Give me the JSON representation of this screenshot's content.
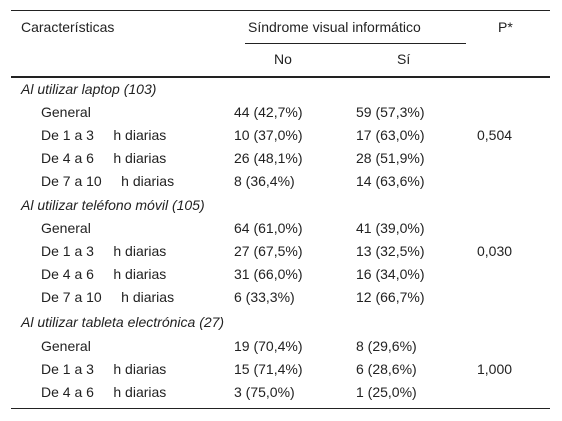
{
  "header": {
    "characteristics": "Características",
    "group": "Síndrome visual informático",
    "p": "P*",
    "no": "No",
    "si": "Sí"
  },
  "sections": [
    {
      "title": "Al utilizar laptop (103)",
      "p_value": "0,504",
      "rows": [
        {
          "label": "General",
          "no": "44 (42,7%)",
          "si": "59 (57,3%)"
        },
        {
          "label": "De 1 a 3     h diarias",
          "no": "10 (37,0%)",
          "si": "17 (63,0%)"
        },
        {
          "label": "De 4 a 6     h diarias",
          "no": "26 (48,1%)",
          "si": "28 (51,9%)"
        },
        {
          "label": "De 7 a 10     h diarias",
          "no": "8 (36,4%)",
          "si": "14 (63,6%)"
        }
      ]
    },
    {
      "title": "Al utilizar teléfono móvil (105)",
      "p_value": "0,030",
      "rows": [
        {
          "label": "General",
          "no": "64 (61,0%)",
          "si": "41 (39,0%)"
        },
        {
          "label": "De 1 a 3     h diarias",
          "no": "27 (67,5%)",
          "si": "13 (32,5%)"
        },
        {
          "label": "De 4 a 6     h diarias",
          "no": "31 (66,0%)",
          "si": "16 (34,0%)"
        },
        {
          "label": "De 7 a 10     h diarias",
          "no": "6 (33,3%)",
          "si": "12 (66,7%)"
        }
      ]
    },
    {
      "title": "Al utilizar tableta electrónica (27)",
      "p_value": "1,000",
      "rows": [
        {
          "label": "General",
          "no": "19 (70,4%)",
          "si": "8 (29,6%)"
        },
        {
          "label": "De 1 a 3     h diarias",
          "no": "15 (71,4%)",
          "si": "6 (28,6%)"
        },
        {
          "label": "De 4 a 6     h diarias",
          "no": "3 (75,0%)",
          "si": "1 (25,0%)"
        }
      ]
    }
  ]
}
